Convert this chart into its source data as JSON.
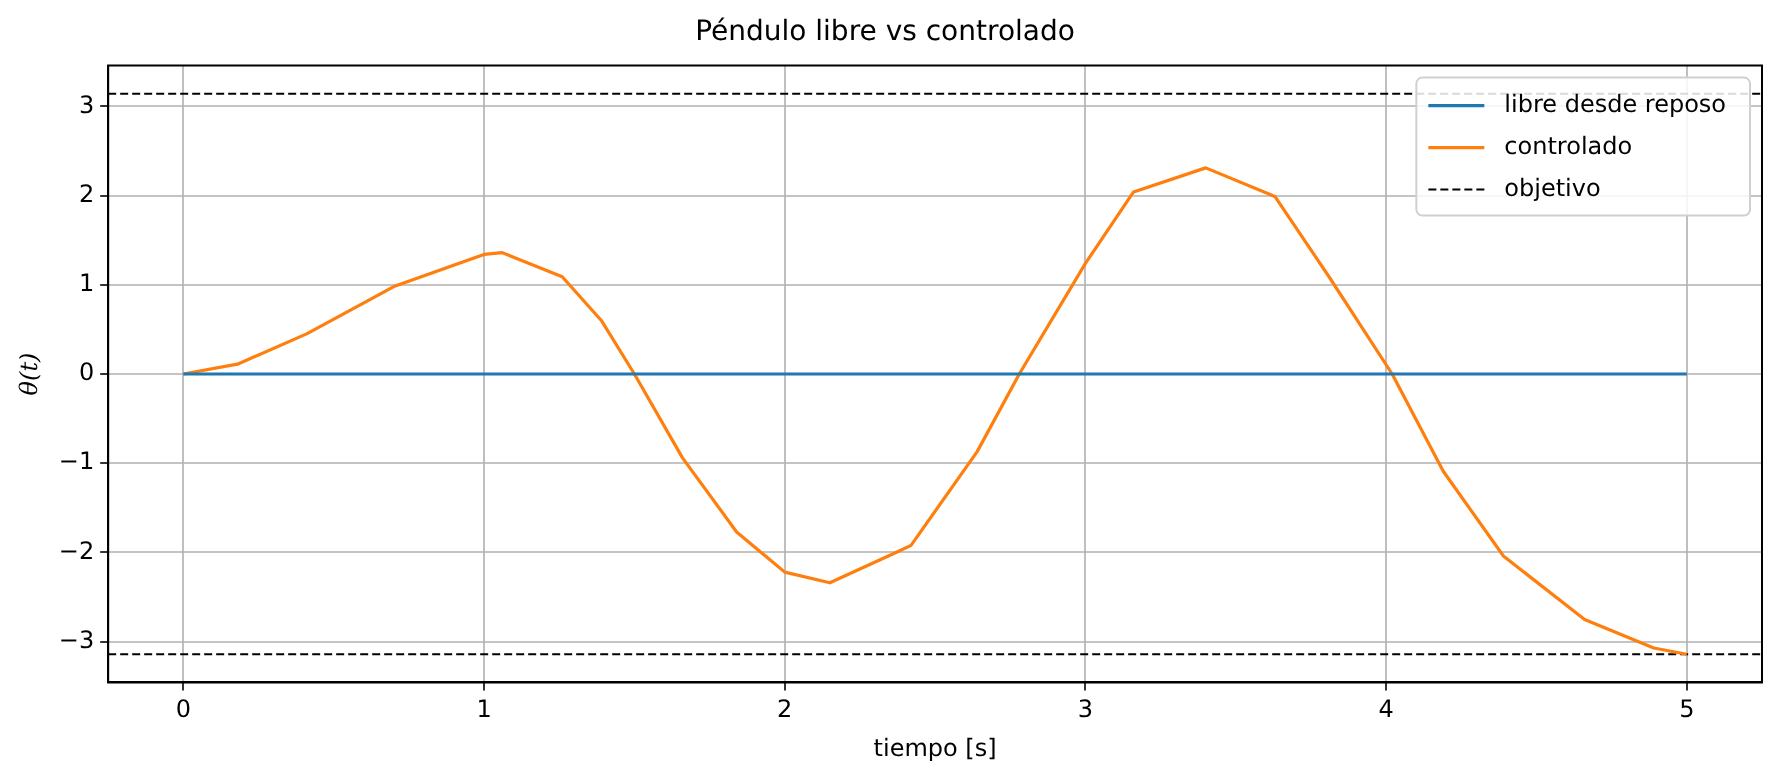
{
  "chart_data": {
    "type": "line",
    "title": "Péndulo libre vs controlado",
    "xlabel": "tiempo [s]",
    "ylabel": "θ(t)",
    "xlim": [
      -0.25,
      5.25
    ],
    "xticks": [
      0,
      1,
      2,
      3,
      4,
      5
    ],
    "ylim": [
      -3.456,
      3.456
    ],
    "yticks": [
      -3,
      -2,
      -1,
      0,
      1,
      2,
      3
    ],
    "grid": true,
    "legend": "top right",
    "line_style": "solid",
    "marker": "none",
    "series": [
      {
        "name": "libre desde reposo",
        "color": "#1f77b4",
        "x": [
          0,
          1,
          2,
          3,
          4,
          5
        ],
        "values": [
          0,
          0,
          0,
          0,
          0,
          0
        ]
      },
      {
        "name": "controlado",
        "color": "#ff7f0e",
        "x": [
          0,
          0.18,
          0.41,
          0.7,
          1.0,
          1.06,
          1.26,
          1.39,
          1.5,
          1.66,
          1.84,
          2.0,
          2.15,
          2.37,
          2.42,
          2.64,
          2.78,
          3.0,
          3.16,
          3.4,
          3.63,
          3.81,
          4.02,
          4.19,
          4.39,
          4.66,
          4.89,
          5.0
        ],
        "values": [
          0,
          0.11,
          0.45,
          0.98,
          1.34,
          1.36,
          1.09,
          0.6,
          0,
          -0.94,
          -1.77,
          -2.22,
          -2.34,
          -2.0,
          -1.92,
          -0.87,
          0,
          1.24,
          2.04,
          2.31,
          1.99,
          1.09,
          0,
          -1.09,
          -2.04,
          -2.75,
          -3.07,
          -3.14
        ]
      }
    ],
    "ref_lines": [
      {
        "axis": "y",
        "value": 3.1416,
        "label": "objetivo",
        "color": "#000000",
        "line_style": "dashed"
      },
      {
        "axis": "y",
        "value": -3.1416,
        "color": "#000000",
        "line_style": "dashed"
      }
    ]
  }
}
